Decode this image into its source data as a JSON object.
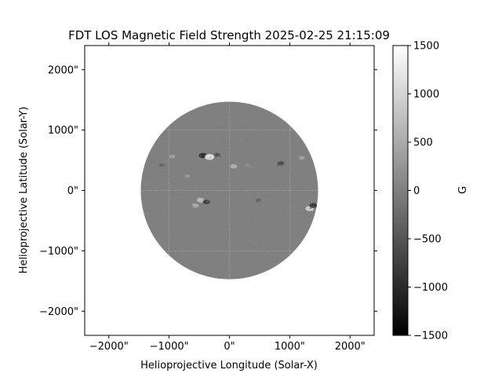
{
  "chart_data": {
    "type": "heatmap",
    "title": "FDT LOS Magnetic Field Strength 2025-02-25 21:15:09",
    "xlabel": "Helioprojective Longitude (Solar-X)",
    "ylabel": "Helioprojective Latitude (Solar-Y)",
    "xlim": [
      -2400,
      2400
    ],
    "ylim": [
      -2400,
      2400
    ],
    "x_ticks": [
      {
        "value": -2000,
        "label": "−2000\""
      },
      {
        "value": -1000,
        "label": "−1000\""
      },
      {
        "value": 0,
        "label": "0\""
      },
      {
        "value": 1000,
        "label": "1000\""
      },
      {
        "value": 2000,
        "label": "2000\""
      }
    ],
    "y_ticks": [
      {
        "value": 2000,
        "label": "2000\""
      },
      {
        "value": 1000,
        "label": "1000\""
      },
      {
        "value": 0,
        "label": "0\""
      },
      {
        "value": -1000,
        "label": "−1000\""
      },
      {
        "value": -2000,
        "label": "−2000\""
      }
    ],
    "solar_disk": {
      "center": [
        0,
        0
      ],
      "radius": 1470
    },
    "grid": true,
    "grid_lines_x": [
      -1000,
      0,
      1000
    ],
    "grid_lines_y": [
      -1000,
      0,
      1000
    ],
    "colormap": "gray",
    "disk_background_color": "#808080",
    "colorbar": {
      "label": "G",
      "min": -1500,
      "max": 1500,
      "placement": "right",
      "ticks": [
        {
          "value": 1500,
          "label": "1500"
        },
        {
          "value": 1000,
          "label": "1000"
        },
        {
          "value": 500,
          "label": "500"
        },
        {
          "value": 0,
          "label": "0"
        },
        {
          "value": -500,
          "label": "−500"
        },
        {
          "value": -1000,
          "label": "−1000"
        },
        {
          "value": -1500,
          "label": "−1500"
        }
      ]
    },
    "features": [
      {
        "x": -440,
        "y": 580,
        "field": -900
      },
      {
        "x": -330,
        "y": 555,
        "field": 1100
      },
      {
        "x": -200,
        "y": 590,
        "field": -500
      },
      {
        "x": -950,
        "y": 560,
        "field": 400
      },
      {
        "x": 70,
        "y": 400,
        "field": 600
      },
      {
        "x": -480,
        "y": -160,
        "field": 700
      },
      {
        "x": -380,
        "y": -190,
        "field": -700
      },
      {
        "x": -560,
        "y": -250,
        "field": 500
      },
      {
        "x": 850,
        "y": 450,
        "field": -600
      },
      {
        "x": 1200,
        "y": 540,
        "field": 400
      },
      {
        "x": 1330,
        "y": -300,
        "field": 900
      },
      {
        "x": 1390,
        "y": -250,
        "field": -800
      },
      {
        "x": -1120,
        "y": 420,
        "field": -300
      },
      {
        "x": -700,
        "y": 240,
        "field": 300
      },
      {
        "x": 480,
        "y": -160,
        "field": -300
      },
      {
        "x": 300,
        "y": 420,
        "field": 200
      }
    ]
  }
}
